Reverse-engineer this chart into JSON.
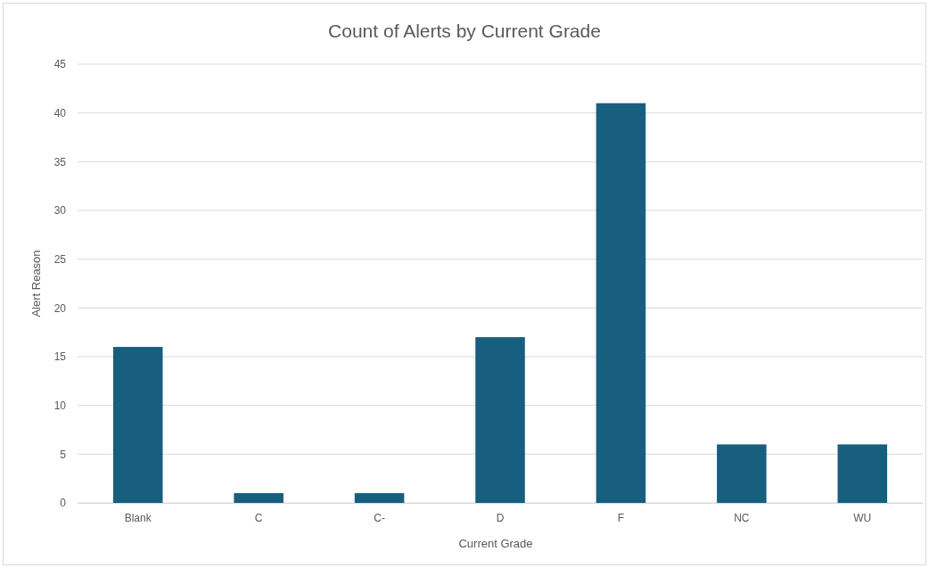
{
  "chart_data": {
    "type": "bar",
    "title": "Count of Alerts by Current Grade",
    "xlabel": "Current Grade",
    "ylabel": "Alert Reason",
    "categories": [
      "Blank",
      "C",
      "C-",
      "D",
      "F",
      "NC",
      "WU"
    ],
    "values": [
      16,
      1,
      1,
      17,
      41,
      6,
      6
    ],
    "color": "#175e7f",
    "ylim": [
      0,
      45
    ],
    "yticks": [
      0,
      5,
      10,
      15,
      20,
      25,
      30,
      35,
      40,
      45
    ],
    "grid": "y"
  }
}
